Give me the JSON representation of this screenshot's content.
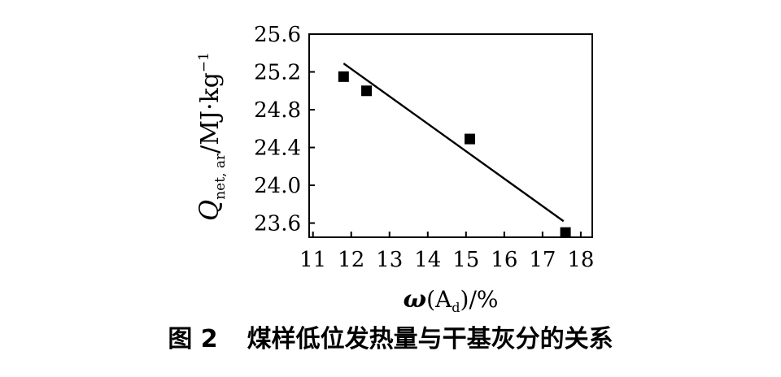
{
  "chart_data": {
    "type": "scatter",
    "title": "",
    "xlabel": {
      "symbol": "ω",
      "open": "(",
      "main": "A",
      "sub": "d",
      "close": ")/%"
    },
    "ylabel": {
      "main": "Q",
      "sub": "net, ar",
      "unit": "/MJ·kg",
      "sup": "−1"
    },
    "xlim": [
      10.9,
      18.3
    ],
    "ylim": [
      23.45,
      25.6
    ],
    "xticks": [
      11,
      12,
      13,
      14,
      15,
      16,
      17,
      18
    ],
    "yticks": [
      "23.6",
      "24.0",
      "24.4",
      "24.8",
      "25.2",
      "25.6"
    ],
    "ytick_values": [
      23.6,
      24.0,
      24.4,
      24.8,
      25.2,
      25.6
    ],
    "points": [
      {
        "x": 11.8,
        "y": 25.15
      },
      {
        "x": 12.4,
        "y": 25.0
      },
      {
        "x": 15.1,
        "y": 24.49
      },
      {
        "x": 17.6,
        "y": 23.5
      }
    ],
    "fit_line": {
      "x": [
        11.8,
        17.55
      ],
      "y": [
        25.29,
        23.62
      ]
    },
    "grid": false,
    "marker_color": "#000000"
  },
  "caption": {
    "number": "图 2",
    "text": "煤样低位发热量与干基灰分的关系"
  }
}
